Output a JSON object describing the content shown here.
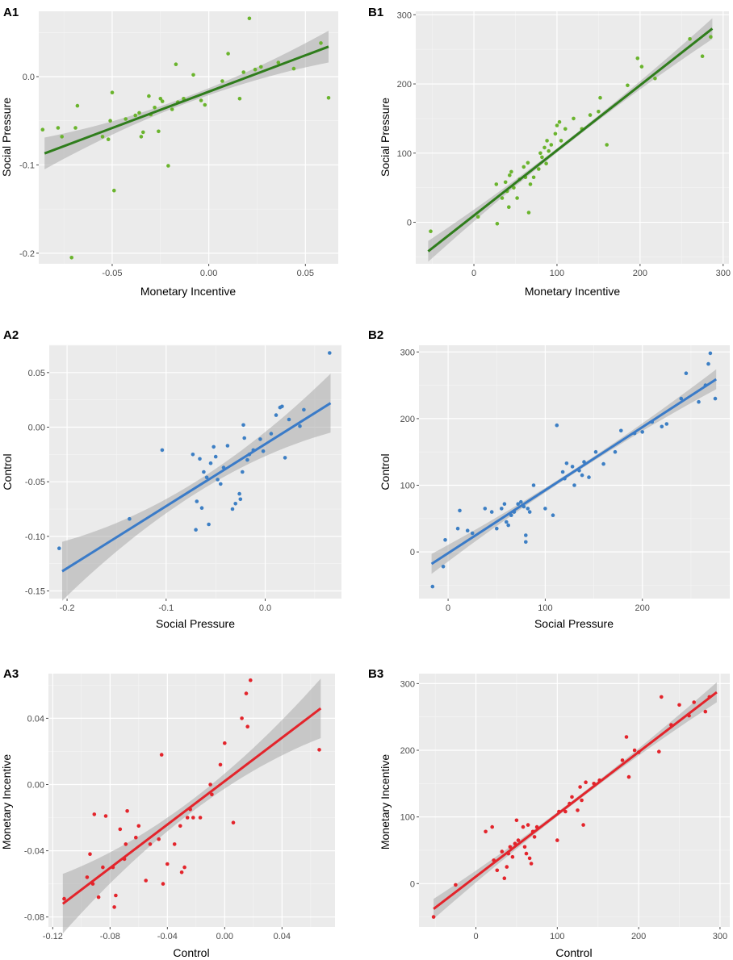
{
  "figure": {
    "description_free": true
  },
  "chart_data": [
    {
      "id": "A1",
      "panel_label": "A1",
      "type": "scatter",
      "xlabel": "Monetary Incentive",
      "ylabel": "Social Pressure",
      "xlim": [
        -0.088,
        0.067
      ],
      "ylim": [
        -0.212,
        0.074
      ],
      "xticks": [
        -0.05,
        0.0,
        0.05
      ],
      "xtick_labels": [
        "-0.05",
        "0.00",
        "0.05"
      ],
      "yticks": [
        -0.2,
        -0.1,
        0.0
      ],
      "ytick_labels": [
        "-0.2",
        "-0.1",
        "0.0"
      ],
      "color": "#6ab42d",
      "line_color": "#2f7d1c",
      "band_color": "#a9a9a9",
      "fit": {
        "x0": -0.085,
        "y0": -0.087,
        "x1": 0.062,
        "y1": 0.034,
        "band": 0.006
      },
      "points": [
        [
          -0.086,
          -0.06
        ],
        [
          -0.078,
          -0.058
        ],
        [
          -0.076,
          -0.068
        ],
        [
          -0.071,
          -0.205
        ],
        [
          -0.069,
          -0.058
        ],
        [
          -0.068,
          -0.033
        ],
        [
          -0.055,
          -0.068
        ],
        [
          -0.052,
          -0.071
        ],
        [
          -0.051,
          -0.05
        ],
        [
          -0.05,
          -0.018
        ],
        [
          -0.049,
          -0.129
        ],
        [
          -0.043,
          -0.048
        ],
        [
          -0.038,
          -0.044
        ],
        [
          -0.036,
          -0.041
        ],
        [
          -0.035,
          -0.068
        ],
        [
          -0.034,
          -0.063
        ],
        [
          -0.031,
          -0.022
        ],
        [
          -0.03,
          -0.043
        ],
        [
          -0.028,
          -0.035
        ],
        [
          -0.026,
          -0.062
        ],
        [
          -0.025,
          -0.025
        ],
        [
          -0.024,
          -0.028
        ],
        [
          -0.021,
          -0.101
        ],
        [
          -0.019,
          -0.037
        ],
        [
          -0.017,
          0.014
        ],
        [
          -0.016,
          -0.029
        ],
        [
          -0.013,
          -0.025
        ],
        [
          -0.008,
          0.002
        ],
        [
          -0.004,
          -0.027
        ],
        [
          -0.002,
          -0.032
        ],
        [
          0.007,
          -0.005
        ],
        [
          0.01,
          0.026
        ],
        [
          0.016,
          -0.025
        ],
        [
          0.018,
          0.005
        ],
        [
          0.021,
          0.066
        ],
        [
          0.024,
          0.008
        ],
        [
          0.027,
          0.011
        ],
        [
          0.036,
          0.016
        ],
        [
          0.044,
          0.009
        ],
        [
          0.058,
          0.038
        ],
        [
          0.062,
          -0.024
        ]
      ]
    },
    {
      "id": "B1",
      "panel_label": "B1",
      "type": "scatter",
      "xlabel": "Monetary Incentive",
      "ylabel": "Social Pressure",
      "xlim": [
        -70,
        307
      ],
      "ylim": [
        -60,
        305
      ],
      "xticks": [
        0,
        100,
        200,
        300
      ],
      "xtick_labels": [
        "0",
        "100",
        "200",
        "300"
      ],
      "yticks": [
        0,
        100,
        200,
        300
      ],
      "ytick_labels": [
        "0",
        "100",
        "200",
        "300"
      ],
      "color": "#6ab42d",
      "line_color": "#2f7d1c",
      "band_color": "#a9a9a9",
      "fit": {
        "x0": -55,
        "y0": -42,
        "x1": 287,
        "y1": 280,
        "band": 5
      },
      "points": [
        [
          -52,
          -13
        ],
        [
          5,
          8
        ],
        [
          27,
          55
        ],
        [
          28,
          -2
        ],
        [
          34,
          35
        ],
        [
          38,
          58
        ],
        [
          40,
          45
        ],
        [
          42,
          22
        ],
        [
          43,
          68
        ],
        [
          45,
          73
        ],
        [
          48,
          50
        ],
        [
          52,
          35
        ],
        [
          55,
          62
        ],
        [
          60,
          80
        ],
        [
          62,
          65
        ],
        [
          65,
          86
        ],
        [
          66,
          14
        ],
        [
          68,
          55
        ],
        [
          72,
          65
        ],
        [
          78,
          77
        ],
        [
          80,
          100
        ],
        [
          82,
          94
        ],
        [
          85,
          108
        ],
        [
          87,
          85
        ],
        [
          88,
          118
        ],
        [
          90,
          103
        ],
        [
          93,
          112
        ],
        [
          98,
          128
        ],
        [
          100,
          140
        ],
        [
          103,
          145
        ],
        [
          105,
          118
        ],
        [
          110,
          135
        ],
        [
          120,
          150
        ],
        [
          130,
          135
        ],
        [
          140,
          155
        ],
        [
          150,
          160
        ],
        [
          152,
          180
        ],
        [
          160,
          112
        ],
        [
          185,
          198
        ],
        [
          197,
          237
        ],
        [
          202,
          225
        ],
        [
          218,
          208
        ],
        [
          260,
          265
        ],
        [
          275,
          240
        ],
        [
          285,
          268
        ]
      ]
    },
    {
      "id": "A2",
      "panel_label": "A2",
      "type": "scatter",
      "xlabel": "Social Pressure",
      "ylabel": "Control",
      "xlim": [
        -0.218,
        0.077
      ],
      "ylim": [
        -0.157,
        0.075
      ],
      "xticks": [
        -0.2,
        -0.1,
        0.0
      ],
      "xtick_labels": [
        "-0.2",
        "-0.1",
        "0.0"
      ],
      "yticks": [
        -0.15,
        -0.1,
        -0.05,
        0.0,
        0.05
      ],
      "ytick_labels": [
        "-0.15",
        "-0.10",
        "-0.05",
        "0.00",
        "0.05"
      ],
      "color": "#3d7fc4",
      "line_color": "#3a7bc8",
      "band_color": "#a9a9a9",
      "fit": {
        "x0": -0.205,
        "y0": -0.132,
        "x1": 0.066,
        "y1": 0.022,
        "band": 0.009
      },
      "points": [
        [
          -0.208,
          -0.111
        ],
        [
          -0.137,
          -0.084
        ],
        [
          -0.104,
          -0.021
        ],
        [
          -0.073,
          -0.025
        ],
        [
          -0.07,
          -0.094
        ],
        [
          -0.069,
          -0.068
        ],
        [
          -0.066,
          -0.029
        ],
        [
          -0.064,
          -0.074
        ],
        [
          -0.062,
          -0.041
        ],
        [
          -0.059,
          -0.046
        ],
        [
          -0.057,
          -0.089
        ],
        [
          -0.055,
          -0.033
        ],
        [
          -0.052,
          -0.018
        ],
        [
          -0.05,
          -0.027
        ],
        [
          -0.048,
          -0.048
        ],
        [
          -0.045,
          -0.052
        ],
        [
          -0.042,
          -0.037
        ],
        [
          -0.038,
          -0.017
        ],
        [
          -0.033,
          -0.075
        ],
        [
          -0.03,
          -0.07
        ],
        [
          -0.026,
          -0.061
        ],
        [
          -0.025,
          -0.066
        ],
        [
          -0.023,
          -0.041
        ],
        [
          -0.022,
          0.002
        ],
        [
          -0.021,
          -0.01
        ],
        [
          -0.018,
          -0.03
        ],
        [
          -0.016,
          -0.025
        ],
        [
          -0.012,
          -0.021
        ],
        [
          -0.005,
          -0.011
        ],
        [
          -0.002,
          -0.022
        ],
        [
          0.006,
          -0.006
        ],
        [
          0.011,
          0.011
        ],
        [
          0.015,
          0.018
        ],
        [
          0.017,
          0.019
        ],
        [
          0.02,
          -0.028
        ],
        [
          0.024,
          0.007
        ],
        [
          0.035,
          0.001
        ],
        [
          0.039,
          0.016
        ],
        [
          0.065,
          0.068
        ]
      ]
    },
    {
      "id": "B2",
      "panel_label": "B2",
      "type": "scatter",
      "xlabel": "Social Pressure",
      "ylabel": "Control",
      "xlim": [
        -30,
        290
      ],
      "ylim": [
        -70,
        310
      ],
      "xticks": [
        0,
        100,
        200
      ],
      "xtick_labels": [
        "0",
        "100",
        "200"
      ],
      "yticks": [
        0,
        100,
        200,
        300
      ],
      "ytick_labels": [
        "0",
        "100",
        "200",
        "300"
      ],
      "color": "#3d7fc4",
      "line_color": "#3a7bc8",
      "band_color": "#a9a9a9",
      "fit": {
        "x0": -17,
        "y0": -18,
        "x1": 276,
        "y1": 259,
        "band": 5
      },
      "points": [
        [
          -16,
          -52
        ],
        [
          -5,
          -22
        ],
        [
          -3,
          18
        ],
        [
          10,
          35
        ],
        [
          12,
          62
        ],
        [
          20,
          32
        ],
        [
          25,
          28
        ],
        [
          38,
          65
        ],
        [
          45,
          60
        ],
        [
          50,
          35
        ],
        [
          55,
          65
        ],
        [
          58,
          72
        ],
        [
          60,
          45
        ],
        [
          62,
          40
        ],
        [
          65,
          55
        ],
        [
          68,
          60
        ],
        [
          72,
          72
        ],
        [
          75,
          75
        ],
        [
          78,
          68
        ],
        [
          80,
          25
        ],
        [
          80,
          15
        ],
        [
          82,
          65
        ],
        [
          84,
          60
        ],
        [
          88,
          100
        ],
        [
          100,
          65
        ],
        [
          108,
          55
        ],
        [
          112,
          190
        ],
        [
          118,
          120
        ],
        [
          120,
          110
        ],
        [
          122,
          133
        ],
        [
          128,
          128
        ],
        [
          130,
          100
        ],
        [
          135,
          122
        ],
        [
          138,
          115
        ],
        [
          140,
          135
        ],
        [
          145,
          112
        ],
        [
          152,
          150
        ],
        [
          160,
          132
        ],
        [
          172,
          150
        ],
        [
          178,
          182
        ],
        [
          192,
          178
        ],
        [
          200,
          180
        ],
        [
          210,
          195
        ],
        [
          220,
          188
        ],
        [
          225,
          192
        ],
        [
          240,
          230
        ],
        [
          245,
          268
        ],
        [
          258,
          225
        ],
        [
          265,
          250
        ],
        [
          268,
          282
        ],
        [
          270,
          298
        ],
        [
          275,
          230
        ]
      ]
    },
    {
      "id": "A3",
      "panel_label": "A3",
      "type": "scatter",
      "xlabel": "Control",
      "ylabel": "Monetary Incentive",
      "xlim": [
        -0.123,
        0.077
      ],
      "ylim": [
        -0.086,
        0.067
      ],
      "xticks": [
        -0.12,
        -0.08,
        -0.04,
        0.0,
        0.04
      ],
      "xtick_labels": [
        "-0.12",
        "-0.08",
        "-0.04",
        "0.00",
        "0.04"
      ],
      "yticks": [
        -0.08,
        -0.04,
        0.0,
        0.04
      ],
      "ytick_labels": [
        "-0.08",
        "-0.04",
        "0.00",
        "0.04"
      ],
      "color": "#e3242b",
      "line_color": "#e3242b",
      "band_color": "#a9a9a9",
      "fit": {
        "x0": -0.113,
        "y0": -0.072,
        "x1": 0.067,
        "y1": 0.046,
        "band": 0.006
      },
      "points": [
        [
          -0.112,
          -0.069
        ],
        [
          -0.096,
          -0.056
        ],
        [
          -0.094,
          -0.042
        ],
        [
          -0.092,
          -0.06
        ],
        [
          -0.091,
          -0.018
        ],
        [
          -0.088,
          -0.068
        ],
        [
          -0.085,
          -0.05
        ],
        [
          -0.083,
          -0.019
        ],
        [
          -0.078,
          -0.05
        ],
        [
          -0.077,
          -0.074
        ],
        [
          -0.076,
          -0.067
        ],
        [
          -0.073,
          -0.027
        ],
        [
          -0.07,
          -0.045
        ],
        [
          -0.069,
          -0.036
        ],
        [
          -0.068,
          -0.016
        ],
        [
          -0.062,
          -0.032
        ],
        [
          -0.06,
          -0.025
        ],
        [
          -0.055,
          -0.058
        ],
        [
          -0.052,
          -0.036
        ],
        [
          -0.046,
          -0.033
        ],
        [
          -0.044,
          0.018
        ],
        [
          -0.043,
          -0.06
        ],
        [
          -0.04,
          -0.048
        ],
        [
          -0.035,
          -0.036
        ],
        [
          -0.031,
          -0.025
        ],
        [
          -0.03,
          -0.053
        ],
        [
          -0.028,
          -0.05
        ],
        [
          -0.026,
          -0.02
        ],
        [
          -0.024,
          -0.015
        ],
        [
          -0.022,
          -0.02
        ],
        [
          -0.017,
          -0.02
        ],
        [
          -0.01,
          0.0
        ],
        [
          -0.009,
          -0.006
        ],
        [
          -0.003,
          0.012
        ],
        [
          0.0,
          0.025
        ],
        [
          0.006,
          -0.023
        ],
        [
          0.012,
          0.04
        ],
        [
          0.015,
          0.055
        ],
        [
          0.016,
          0.035
        ],
        [
          0.018,
          0.063
        ],
        [
          0.066,
          0.021
        ]
      ]
    },
    {
      "id": "B3",
      "panel_label": "B3",
      "type": "scatter",
      "xlabel": "Control",
      "ylabel": "Monetary Incentive",
      "xlim": [
        -70,
        312
      ],
      "ylim": [
        -65,
        315
      ],
      "xticks": [
        0,
        100,
        200,
        300
      ],
      "xtick_labels": [
        "0",
        "100",
        "200",
        "300"
      ],
      "yticks": [
        0,
        100,
        200,
        300
      ],
      "ytick_labels": [
        "0",
        "100",
        "200",
        "300"
      ],
      "color": "#e3242b",
      "line_color": "#e3242b",
      "band_color": "#a9a9a9",
      "fit": {
        "x0": -52,
        "y0": -38,
        "x1": 296,
        "y1": 287,
        "band": 5
      },
      "points": [
        [
          -52,
          -50
        ],
        [
          -25,
          -2
        ],
        [
          12,
          78
        ],
        [
          20,
          85
        ],
        [
          22,
          35
        ],
        [
          26,
          20
        ],
        [
          32,
          48
        ],
        [
          35,
          8
        ],
        [
          38,
          25
        ],
        [
          40,
          45
        ],
        [
          42,
          55
        ],
        [
          45,
          40
        ],
        [
          48,
          60
        ],
        [
          50,
          95
        ],
        [
          52,
          65
        ],
        [
          58,
          85
        ],
        [
          60,
          55
        ],
        [
          62,
          45
        ],
        [
          64,
          88
        ],
        [
          66,
          38
        ],
        [
          68,
          30
        ],
        [
          70,
          78
        ],
        [
          72,
          70
        ],
        [
          75,
          85
        ],
        [
          100,
          65
        ],
        [
          102,
          108
        ],
        [
          110,
          108
        ],
        [
          115,
          120
        ],
        [
          118,
          130
        ],
        [
          125,
          110
        ],
        [
          128,
          145
        ],
        [
          130,
          125
        ],
        [
          132,
          88
        ],
        [
          135,
          152
        ],
        [
          145,
          150
        ],
        [
          152,
          155
        ],
        [
          180,
          185
        ],
        [
          185,
          220
        ],
        [
          188,
          160
        ],
        [
          195,
          200
        ],
        [
          200,
          197
        ],
        [
          225,
          198
        ],
        [
          228,
          280
        ],
        [
          240,
          238
        ],
        [
          250,
          268
        ],
        [
          262,
          252
        ],
        [
          268,
          272
        ],
        [
          282,
          258
        ],
        [
          287,
          280
        ]
      ]
    }
  ]
}
